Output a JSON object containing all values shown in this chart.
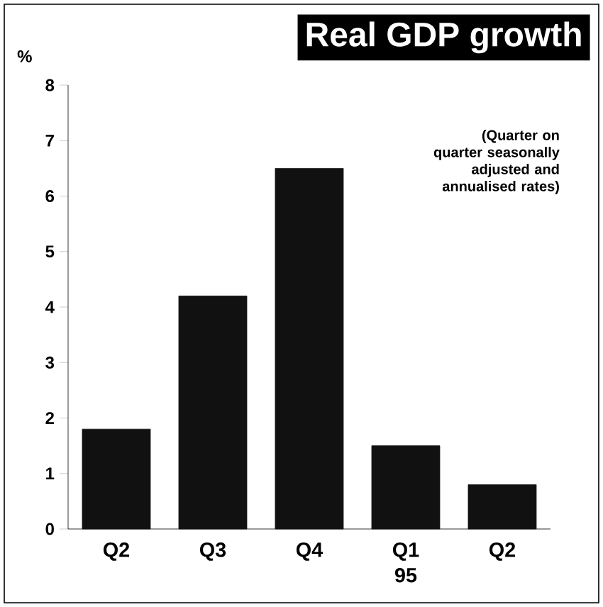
{
  "chart_data": {
    "type": "bar",
    "title": "Real GDP growth",
    "ylabel": "%",
    "categories": [
      "Q2",
      "Q3",
      "Q4",
      "Q1 95",
      "Q2"
    ],
    "values": [
      1.8,
      4.2,
      6.5,
      1.5,
      0.8
    ],
    "color": "#111111",
    "ylim": [
      0,
      8
    ],
    "yticks": [
      0,
      1,
      2,
      3,
      4,
      5,
      6,
      7,
      8
    ],
    "annotations": [
      "(Quarter on quarter seasonally adjusted and annualised rates)"
    ]
  }
}
